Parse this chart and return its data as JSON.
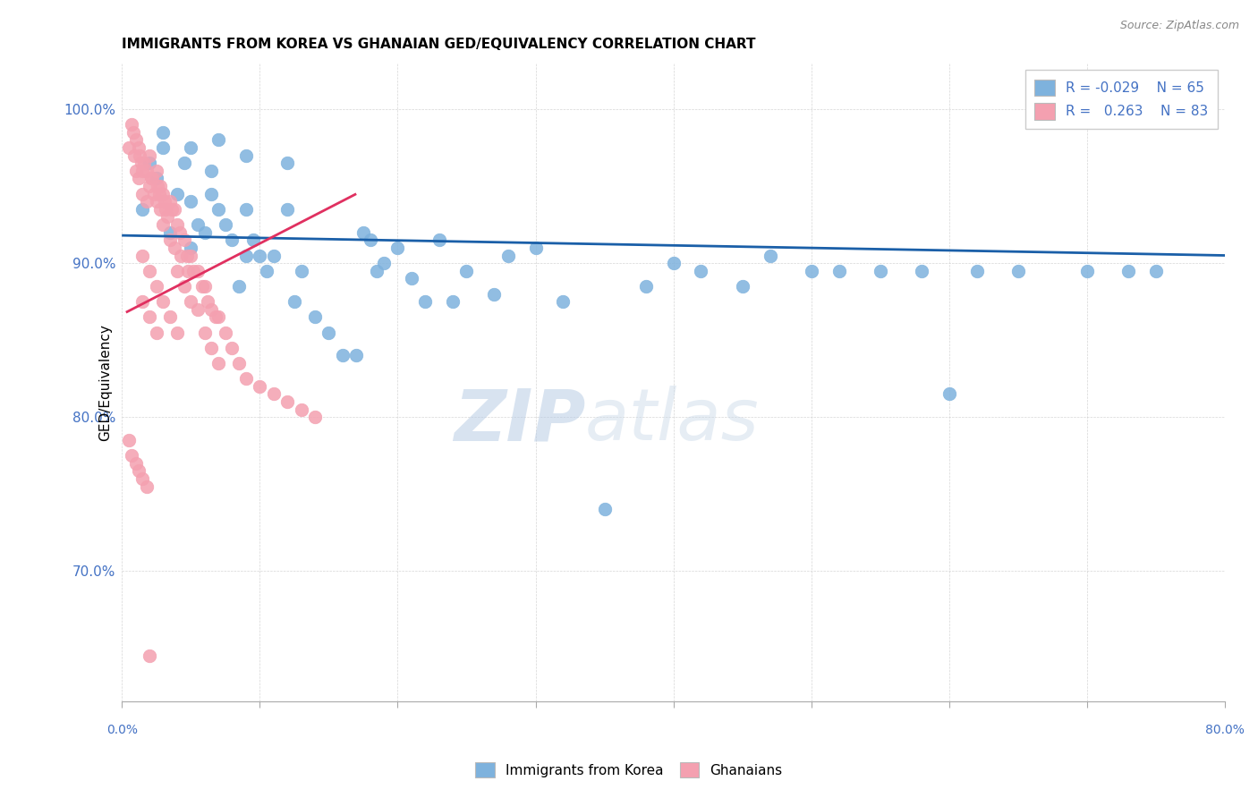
{
  "title": "IMMIGRANTS FROM KOREA VS GHANAIAN GED/EQUIVALENCY CORRELATION CHART",
  "source": "Source: ZipAtlas.com",
  "ylabel": "GED/Equivalency",
  "ytick_labels": [
    "70.0%",
    "80.0%",
    "90.0%",
    "100.0%"
  ],
  "ytick_values": [
    0.7,
    0.8,
    0.9,
    1.0
  ],
  "xlim": [
    0.0,
    0.8
  ],
  "ylim": [
    0.615,
    1.03
  ],
  "legend_r_blue": "-0.029",
  "legend_n_blue": "65",
  "legend_r_pink": "0.263",
  "legend_n_pink": "83",
  "blue_color": "#7EB2DD",
  "pink_color": "#F4A0B0",
  "trend_blue_color": "#1A5FA8",
  "trend_pink_color": "#E03060",
  "watermark_zip": "ZIP",
  "watermark_atlas": "atlas",
  "blue_scatter_x": [
    0.015,
    0.02,
    0.025,
    0.03,
    0.035,
    0.04,
    0.045,
    0.05,
    0.05,
    0.055,
    0.06,
    0.065,
    0.065,
    0.07,
    0.075,
    0.08,
    0.085,
    0.09,
    0.09,
    0.095,
    0.1,
    0.105,
    0.11,
    0.12,
    0.125,
    0.13,
    0.14,
    0.15,
    0.16,
    0.17,
    0.175,
    0.18,
    0.185,
    0.19,
    0.2,
    0.21,
    0.22,
    0.23,
    0.24,
    0.25,
    0.27,
    0.28,
    0.3,
    0.32,
    0.35,
    0.38,
    0.4,
    0.42,
    0.45,
    0.47,
    0.5,
    0.52,
    0.55,
    0.58,
    0.6,
    0.62,
    0.65,
    0.7,
    0.73,
    0.75,
    0.03,
    0.05,
    0.07,
    0.09,
    0.12
  ],
  "blue_scatter_y": [
    0.935,
    0.965,
    0.955,
    0.975,
    0.92,
    0.945,
    0.965,
    0.91,
    0.94,
    0.925,
    0.92,
    0.945,
    0.96,
    0.935,
    0.925,
    0.915,
    0.885,
    0.935,
    0.905,
    0.915,
    0.905,
    0.895,
    0.905,
    0.935,
    0.875,
    0.895,
    0.865,
    0.855,
    0.84,
    0.84,
    0.92,
    0.915,
    0.895,
    0.9,
    0.91,
    0.89,
    0.875,
    0.915,
    0.875,
    0.895,
    0.88,
    0.905,
    0.91,
    0.875,
    0.74,
    0.885,
    0.9,
    0.895,
    0.885,
    0.905,
    0.895,
    0.895,
    0.895,
    0.895,
    0.815,
    0.895,
    0.895,
    0.895,
    0.895,
    0.895,
    0.985,
    0.975,
    0.98,
    0.97,
    0.965
  ],
  "pink_scatter_x": [
    0.005,
    0.007,
    0.008,
    0.009,
    0.01,
    0.01,
    0.012,
    0.012,
    0.013,
    0.014,
    0.015,
    0.015,
    0.016,
    0.018,
    0.018,
    0.02,
    0.02,
    0.021,
    0.022,
    0.023,
    0.025,
    0.025,
    0.026,
    0.027,
    0.028,
    0.028,
    0.03,
    0.03,
    0.031,
    0.032,
    0.033,
    0.035,
    0.035,
    0.036,
    0.038,
    0.038,
    0.04,
    0.04,
    0.042,
    0.043,
    0.045,
    0.045,
    0.047,
    0.048,
    0.05,
    0.05,
    0.052,
    0.055,
    0.055,
    0.058,
    0.06,
    0.06,
    0.062,
    0.065,
    0.065,
    0.068,
    0.07,
    0.07,
    0.075,
    0.08,
    0.085,
    0.09,
    0.1,
    0.11,
    0.12,
    0.13,
    0.14,
    0.015,
    0.02,
    0.025,
    0.03,
    0.035,
    0.04,
    0.015,
    0.02,
    0.025,
    0.005,
    0.007,
    0.01,
    0.012,
    0.015,
    0.018,
    0.02
  ],
  "pink_scatter_y": [
    0.975,
    0.99,
    0.985,
    0.97,
    0.98,
    0.96,
    0.975,
    0.955,
    0.97,
    0.965,
    0.96,
    0.945,
    0.965,
    0.96,
    0.94,
    0.97,
    0.95,
    0.955,
    0.955,
    0.945,
    0.96,
    0.94,
    0.95,
    0.945,
    0.95,
    0.935,
    0.945,
    0.925,
    0.94,
    0.935,
    0.93,
    0.94,
    0.915,
    0.935,
    0.935,
    0.91,
    0.925,
    0.895,
    0.92,
    0.905,
    0.915,
    0.885,
    0.905,
    0.895,
    0.905,
    0.875,
    0.895,
    0.895,
    0.87,
    0.885,
    0.885,
    0.855,
    0.875,
    0.87,
    0.845,
    0.865,
    0.865,
    0.835,
    0.855,
    0.845,
    0.835,
    0.825,
    0.82,
    0.815,
    0.81,
    0.805,
    0.8,
    0.905,
    0.895,
    0.885,
    0.875,
    0.865,
    0.855,
    0.875,
    0.865,
    0.855,
    0.785,
    0.775,
    0.77,
    0.765,
    0.76,
    0.755,
    0.645
  ]
}
